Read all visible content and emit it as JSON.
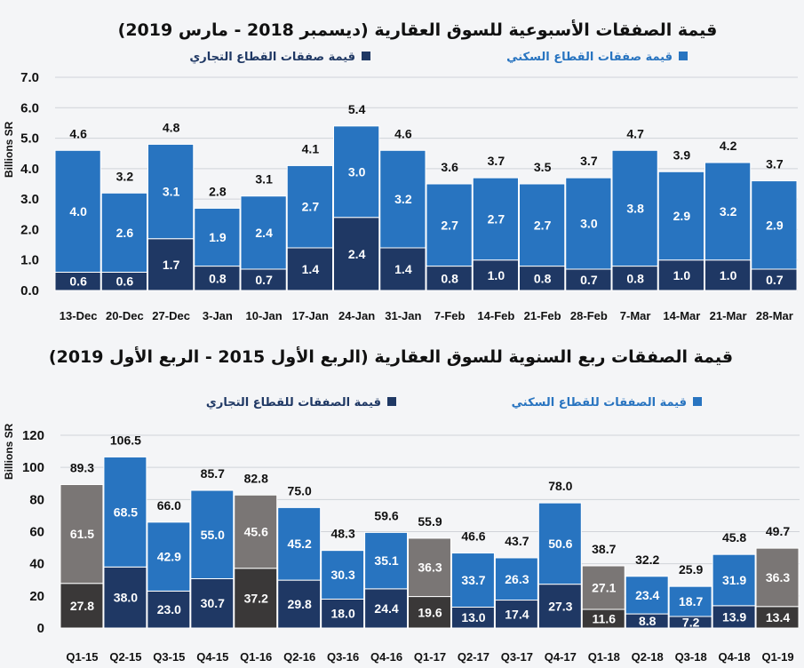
{
  "chart_data": [
    {
      "type": "bar",
      "stacked": true,
      "title": "قيمة الصفقات الأسبوعية للسوق العقارية (ديسمبر 2018 - مارس 2019)",
      "ylabel": "Billions SR",
      "ylim": [
        0,
        7
      ],
      "yticks": [
        "0.0",
        "1.0",
        "2.0",
        "3.0",
        "4.0",
        "5.0",
        "6.0",
        "7.0"
      ],
      "grid": true,
      "legend_position": "top",
      "categories": [
        "13-Dec",
        "20-Dec",
        "27-Dec",
        "3-Jan",
        "10-Jan",
        "17-Jan",
        "24-Jan",
        "31-Jan",
        "7-Feb",
        "14-Feb",
        "21-Feb",
        "28-Feb",
        "7-Mar",
        "14-Mar",
        "21-Mar",
        "28-Mar"
      ],
      "series": [
        {
          "name": "قيمة صفقات القطاع التجاري",
          "color": "#1f3864",
          "values": [
            0.6,
            0.6,
            1.7,
            0.8,
            0.7,
            1.4,
            2.4,
            1.4,
            0.8,
            1.0,
            0.8,
            0.7,
            0.8,
            1.0,
            1.0,
            0.7
          ]
        },
        {
          "name": "قيمة صفقات القطاع السكني",
          "color": "#2874c0",
          "values": [
            4.0,
            2.6,
            3.1,
            1.9,
            2.4,
            2.7,
            3.0,
            3.2,
            2.7,
            2.7,
            2.7,
            3.0,
            3.8,
            2.9,
            3.2,
            2.9
          ]
        }
      ],
      "totals": [
        "4.6",
        "3.2",
        "4.8",
        "2.8",
        "3.1",
        "4.1",
        "5.4",
        "4.6",
        "3.6",
        "3.7",
        "3.5",
        "3.7",
        "4.7",
        "3.9",
        "4.2",
        "3.7"
      ]
    },
    {
      "type": "bar",
      "stacked": true,
      "title": "قيمة الصفقات ربع السنوية للسوق العقارية (الربع الأول 2015 - الربع الأول 2019)",
      "ylabel": "Billions SR",
      "ylim": [
        0,
        120
      ],
      "yticks": [
        "0",
        "20",
        "40",
        "60",
        "80",
        "100",
        "120"
      ],
      "grid": true,
      "legend_position": "top",
      "highlight_color_commercial": "#3a3838",
      "highlight_color_residential": "#7a7675",
      "categories": [
        "Q1-15",
        "Q2-15",
        "Q3-15",
        "Q4-15",
        "Q1-16",
        "Q2-16",
        "Q3-16",
        "Q4-16",
        "Q1-17",
        "Q2-17",
        "Q3-17",
        "Q4-17",
        "Q1-18",
        "Q2-18",
        "Q3-18",
        "Q4-18",
        "Q1-19"
      ],
      "series": [
        {
          "name": "قيمة الصفقات للقطاع التجاري",
          "color": "#1f3864",
          "values": [
            27.8,
            38.0,
            23.0,
            30.7,
            37.2,
            29.8,
            18.0,
            24.4,
            19.6,
            13.0,
            17.4,
            27.3,
            11.6,
            8.8,
            7.2,
            13.9,
            13.4
          ]
        },
        {
          "name": "قيمة الصفقات للقطاع السكني",
          "color": "#2874c0",
          "values": [
            61.5,
            68.5,
            42.9,
            55.0,
            45.6,
            45.2,
            30.3,
            35.1,
            36.3,
            33.7,
            26.3,
            50.6,
            27.1,
            23.4,
            18.7,
            31.9,
            36.3
          ]
        }
      ],
      "totals": [
        "89.3",
        "106.5",
        "66.0",
        "85.7",
        "82.8",
        "75.0",
        "48.3",
        "59.6",
        "55.9",
        "46.6",
        "43.7",
        "78.0",
        "38.7",
        "32.2",
        "25.9",
        "45.8",
        "49.7"
      ]
    }
  ]
}
